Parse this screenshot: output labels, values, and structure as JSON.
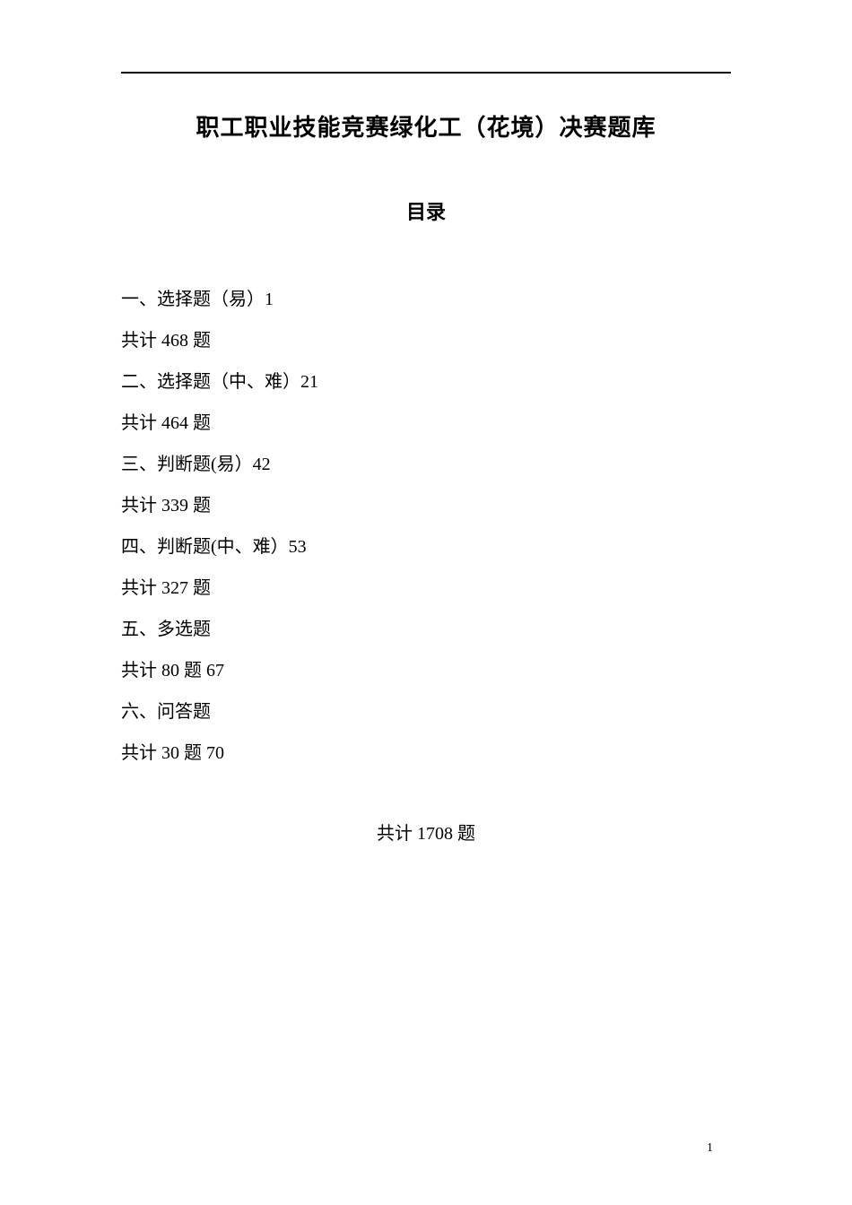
{
  "title": "职工职业技能竞赛绿化工（花境）决赛题库",
  "subtitle": "目录",
  "toc": [
    {
      "label": "一、选择题（易）1"
    },
    {
      "label": "共计 468 题"
    },
    {
      "label": "二、选择题（中、难）21"
    },
    {
      "label": "共计 464 题"
    },
    {
      "label": "三、判断题(易）42"
    },
    {
      "label": "共计 339 题"
    },
    {
      "label": "四、判断题(中、难）53"
    },
    {
      "label": "共计 327 题"
    },
    {
      "label": "五、多选题"
    },
    {
      "label": "共计 80 题 67"
    },
    {
      "label": "六、问答题"
    },
    {
      "label": "共计 30 题 70"
    }
  ],
  "total": "共计 1708 题",
  "page_number": "1"
}
